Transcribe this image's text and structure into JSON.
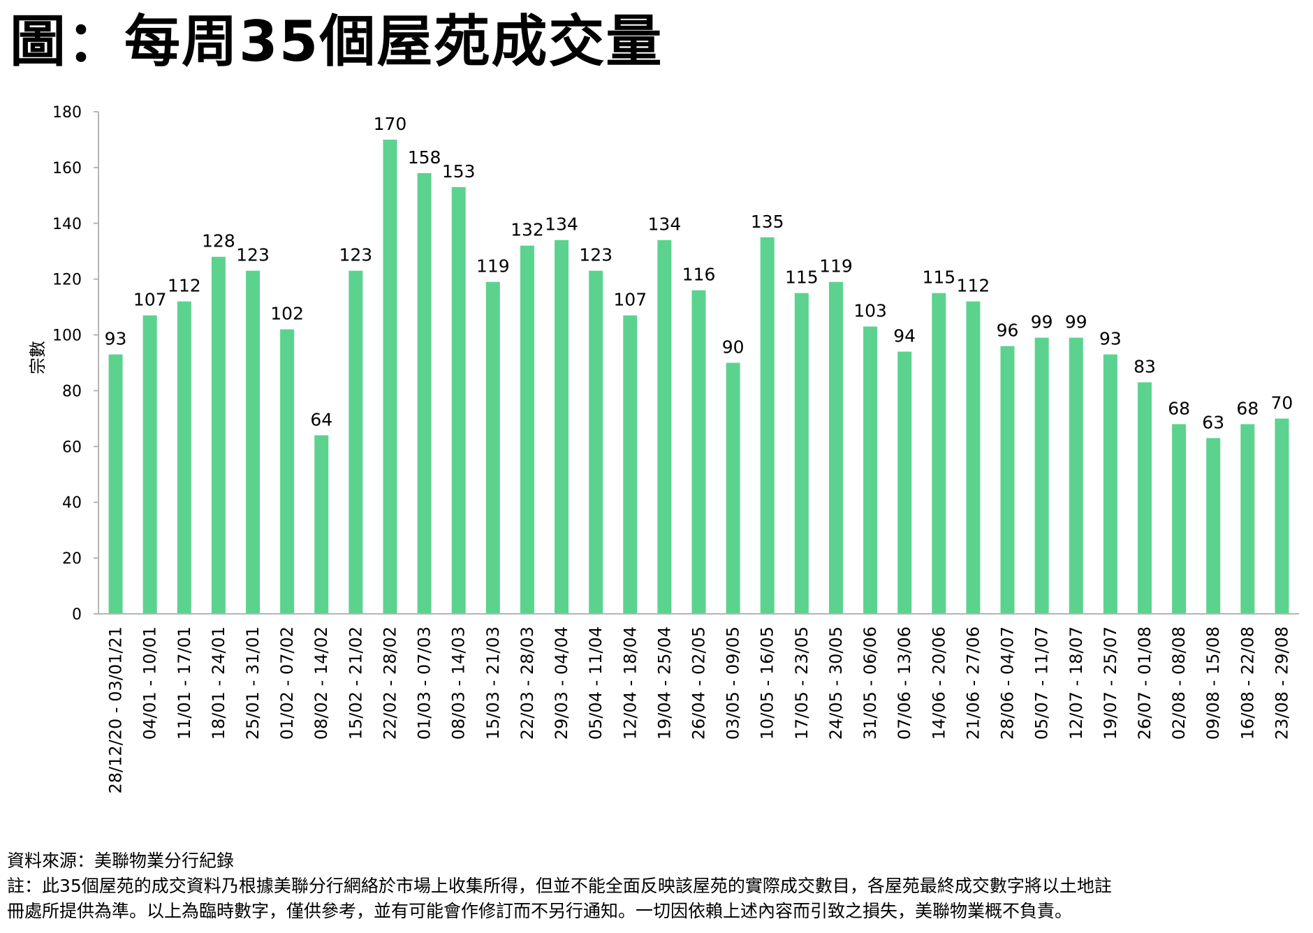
{
  "title": "圖：每周35個屋苑成交量",
  "chart_data": {
    "type": "bar",
    "title": "圖：每周35個屋苑成交量",
    "xlabel": "",
    "ylabel": "宗數",
    "ylim": [
      0,
      180
    ],
    "yticks": [
      0,
      20,
      40,
      60,
      80,
      100,
      120,
      140,
      160,
      180
    ],
    "grid": false,
    "bar_color": "#5bd38f",
    "categories": [
      "28/12/20 - 03/01/21",
      "04/01 - 10/01",
      "11/01 - 17/01",
      "18/01 - 24/01",
      "25/01 - 31/01",
      "01/02 - 07/02",
      "08/02 - 14/02",
      "15/02 - 21/02",
      "22/02 - 28/02",
      "01/03 - 07/03",
      "08/03 - 14/03",
      "15/03 - 21/03",
      "22/03 - 28/03",
      "29/03 - 04/04",
      "05/04 - 11/04",
      "12/04 - 18/04",
      "19/04 - 25/04",
      "26/04 - 02/05",
      "03/05 - 09/05",
      "10/05 - 16/05",
      "17/05 - 23/05",
      "24/05 - 30/05",
      "31/05 - 06/06",
      "07/06 - 13/06",
      "14/06 - 20/06",
      "21/06 - 27/06",
      "28/06 - 04/07",
      "05/07 - 11/07",
      "12/07 - 18/07",
      "19/07 - 25/07",
      "26/07 - 01/08",
      "02/08 - 08/08",
      "09/08 - 15/08",
      "16/08 - 22/08",
      "23/08 - 29/08"
    ],
    "values": [
      93,
      107,
      112,
      128,
      123,
      102,
      64,
      123,
      170,
      158,
      153,
      119,
      132,
      134,
      123,
      107,
      134,
      116,
      90,
      135,
      115,
      119,
      103,
      94,
      115,
      112,
      96,
      99,
      99,
      93,
      83,
      68,
      63,
      68,
      70
    ]
  },
  "footer": {
    "source": "資料來源：美聯物業分行紀錄",
    "note_line1": "註：此35個屋苑的成交資料乃根據美聯分行網絡於市場上收集所得，但並不能全面反映該屋苑的實際成交數目，各屋苑最終成交數字將以土地註",
    "note_line2": "冊處所提供為準。以上為臨時數字，僅供參考，並有可能會作修訂而不另行通知。一切因依賴上述內容而引致之損失，美聯物業概不負責。"
  }
}
